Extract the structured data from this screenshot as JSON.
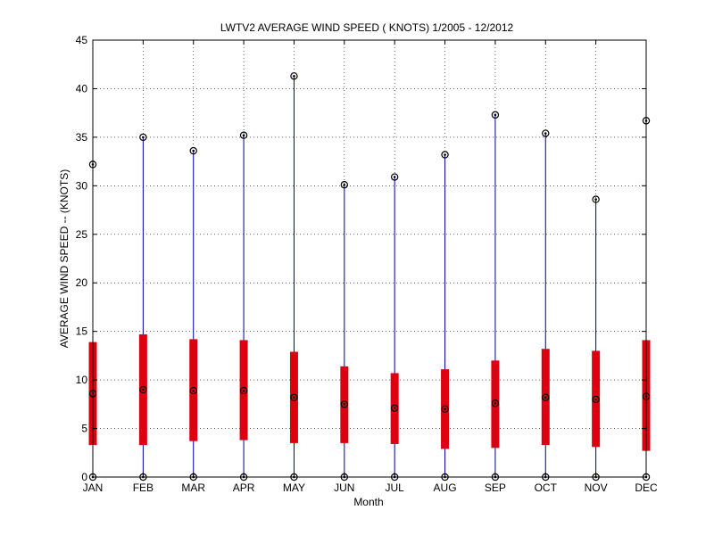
{
  "chart_data": {
    "type": "box",
    "title": "LWTV2  AVERAGE WIND SPEED ( KNOTS) 1/2005 - 12/2012",
    "xlabel": "Month",
    "ylabel": "AVERAGE WIND SPEED -- (KNOTS)",
    "ylim": [
      0,
      45
    ],
    "yticks": [
      0,
      5,
      10,
      15,
      20,
      25,
      30,
      35,
      40,
      45
    ],
    "grid": true,
    "colors": {
      "whisker": "#0000aa",
      "box": "#dd0011",
      "marker": "#000000"
    },
    "categories": [
      "JAN",
      "FEB",
      "MAR",
      "APR",
      "MAY",
      "JUN",
      "JUL",
      "AUG",
      "SEP",
      "OCT",
      "NOV",
      "DEC"
    ],
    "series": [
      {
        "values": [
          {
            "min": 0,
            "q1": 3.3,
            "median": 8.6,
            "q3": 13.9,
            "max": 32.2
          },
          {
            "min": 0,
            "q1": 3.3,
            "median": 9.0,
            "q3": 14.7,
            "max": 35.0
          },
          {
            "min": 0,
            "q1": 3.7,
            "median": 8.9,
            "q3": 14.2,
            "max": 33.6
          },
          {
            "min": 0,
            "q1": 3.8,
            "median": 8.9,
            "q3": 14.1,
            "max": 35.2
          },
          {
            "min": 0,
            "q1": 3.5,
            "median": 8.2,
            "q3": 12.9,
            "max": 41.3
          },
          {
            "min": 0,
            "q1": 3.5,
            "median": 7.5,
            "q3": 11.4,
            "max": 30.1
          },
          {
            "min": 0,
            "q1": 3.4,
            "median": 7.1,
            "q3": 10.7,
            "max": 30.9
          },
          {
            "min": 0,
            "q1": 2.9,
            "median": 7.0,
            "q3": 11.1,
            "max": 33.2
          },
          {
            "min": 0,
            "q1": 3.0,
            "median": 7.6,
            "q3": 12.0,
            "max": 37.3
          },
          {
            "min": 0,
            "q1": 3.3,
            "median": 8.2,
            "q3": 13.2,
            "max": 35.4
          },
          {
            "min": 0,
            "q1": 3.1,
            "median": 8.0,
            "q3": 13.0,
            "max": 28.6
          },
          {
            "min": 0,
            "q1": 2.7,
            "median": 8.3,
            "q3": 14.1,
            "max": 36.7
          }
        ]
      }
    ]
  }
}
